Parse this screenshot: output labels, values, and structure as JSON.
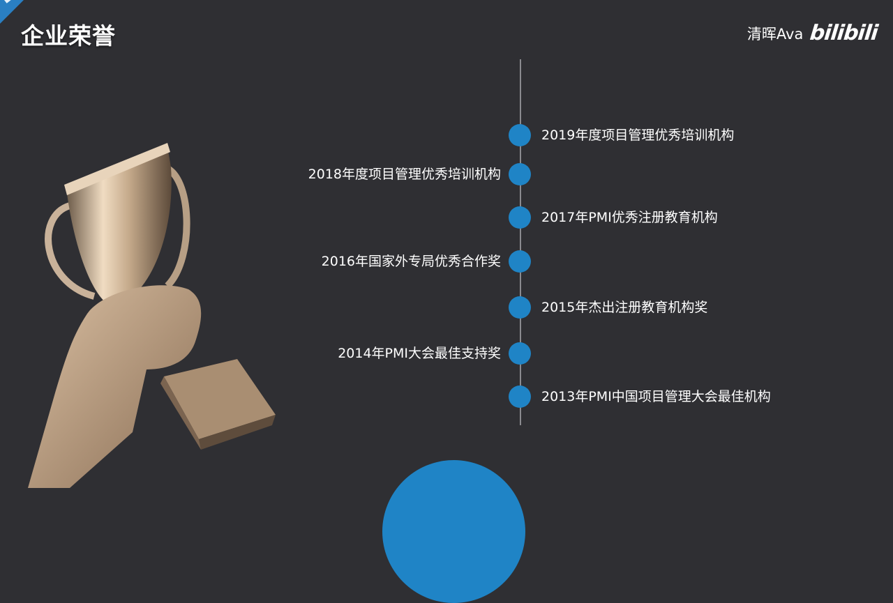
{
  "header": {
    "title": "企业荣誉",
    "brand_name": "清晖Ava",
    "brand_logo": "bilibili"
  },
  "timeline": [
    {
      "text": "2019年度项目管理优秀培训机构",
      "side": "right"
    },
    {
      "text": "2018年度项目管理优秀培训机构",
      "side": "left"
    },
    {
      "text": "2017年PMI优秀注册教育机构",
      "side": "right"
    },
    {
      "text": "2016年国家外专局优秀合作奖",
      "side": "left"
    },
    {
      "text": "2015年杰出注册教育机构奖",
      "side": "right"
    },
    {
      "text": "2014年PMI大会最佳支持奖",
      "side": "left"
    },
    {
      "text": "2013年PMI中国项目管理大会最佳机构",
      "side": "right"
    }
  ],
  "colors": {
    "background": "#2f2f33",
    "accent": "#1f84c6",
    "text": "#ffffff"
  },
  "icons": {
    "trophy": "trophy-icon",
    "dot": "timeline-dot-icon"
  }
}
